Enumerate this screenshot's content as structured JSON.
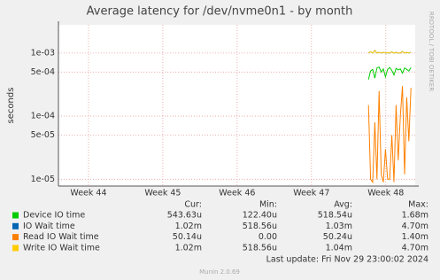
{
  "chart_data": {
    "type": "line",
    "title": "Average latency for /dev/nvme0n1 - by month",
    "y_label": "seconds",
    "side_label": "RRDTOOL / TOBI OETIKER",
    "log_scale": true,
    "grid": true,
    "xlim": [
      0,
      33.6
    ],
    "xticks": [
      {
        "value": 2.83,
        "label": "Week 44"
      },
      {
        "value": 9.83,
        "label": "Week 45"
      },
      {
        "value": 16.83,
        "label": "Week 46"
      },
      {
        "value": 23.83,
        "label": "Week 47"
      },
      {
        "value": 30.83,
        "label": "Week 48"
      }
    ],
    "ylim": [
      7.8e-06,
      0.0028
    ],
    "yticks": [
      {
        "value": 1e-05,
        "label": "1e-05"
      },
      {
        "value": 5e-05,
        "label": "5e-05"
      },
      {
        "value": 0.0001,
        "label": "1e-04"
      },
      {
        "value": 0.0005,
        "label": "5e-04"
      },
      {
        "value": 0.001,
        "label": "1e-03"
      }
    ],
    "x": [
      29.2,
      29.4,
      29.6,
      29.8,
      30.0,
      30.2,
      30.4,
      30.6,
      30.8,
      31.0,
      31.2,
      31.4,
      31.6,
      31.8,
      32.0,
      32.2,
      32.4,
      32.6,
      32.8,
      33.0,
      33.2
    ],
    "series": [
      {
        "name": "Device IO time",
        "color": "#00cc00",
        "values": [
          0.00038,
          0.00052,
          0.00055,
          0.0004,
          0.00058,
          0.0006,
          0.0005,
          0.00056,
          0.00042,
          0.00055,
          0.00059,
          0.00053,
          0.00045,
          0.00057,
          0.00054,
          0.00056,
          0.00048,
          0.00058,
          0.00055,
          0.00052,
          0.00059
        ]
      },
      {
        "name": "IO Wait time",
        "color": "#0066b3",
        "values": [
          0.001,
          0.00105,
          0.001,
          0.0011,
          0.001,
          0.00102,
          0.001,
          0.00103,
          0.001,
          0.00101,
          0.001,
          0.00104,
          0.001,
          0.00102,
          0.001,
          0.001,
          0.00106,
          0.001,
          0.00102,
          0.001,
          0.00103
        ]
      },
      {
        "name": "Read IO Wait time",
        "color": "#ff8000",
        "values": [
          0.00015,
          1e-05,
          9e-06,
          8e-05,
          1e-05,
          0.00025,
          1.2e-05,
          9e-06,
          3e-05,
          1e-05,
          1e-05,
          5e-05,
          9e-06,
          0.00015,
          2e-05,
          0.0001,
          0.0003,
          1.2e-05,
          0.0002,
          4e-05,
          0.00028
        ]
      },
      {
        "name": "Write IO Wait time",
        "color": "#ffcc00",
        "values": [
          0.001,
          0.00105,
          0.001,
          0.0011,
          0.001,
          0.00102,
          0.001,
          0.00103,
          0.001,
          0.00101,
          0.001,
          0.00104,
          0.001,
          0.00102,
          0.001,
          0.001,
          0.00106,
          0.001,
          0.00102,
          0.001,
          0.00103
        ]
      }
    ],
    "stats": {
      "headers": [
        "Cur:",
        "Min:",
        "Avg:",
        "Max:"
      ],
      "rows": [
        [
          "543.63u",
          "122.40u",
          "518.54u",
          "1.68m"
        ],
        [
          "1.02m",
          "518.56u",
          "1.03m",
          "4.70m"
        ],
        [
          "50.14u",
          "0.00",
          "50.24u",
          "1.40m"
        ],
        [
          "1.02m",
          "518.56u",
          "1.04m",
          "4.70m"
        ]
      ]
    },
    "last_update": "Last update: Fri Nov 29 23:00:02 2024",
    "footer": "Munin 2.0.69"
  }
}
